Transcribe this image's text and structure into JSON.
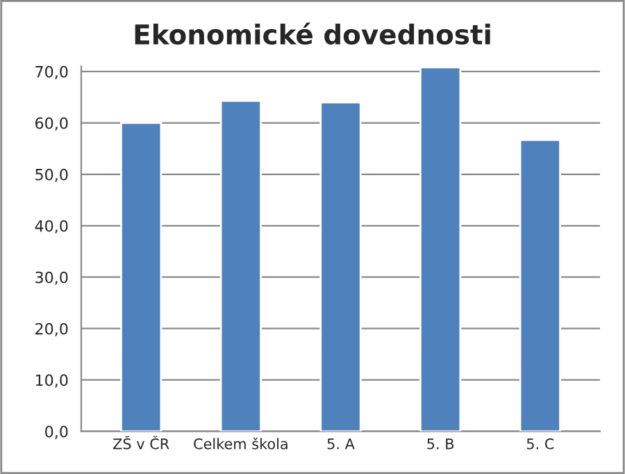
{
  "chart_data": {
    "type": "bar",
    "title": "Ekonomické dovednosti",
    "categories": [
      "ZŠ v ČR",
      "Celkem škola",
      "5. A",
      "5. B",
      "5. C"
    ],
    "values": [
      60.0,
      64.3,
      64.0,
      70.8,
      56.7
    ],
    "color": "#4f81bd",
    "ylim": [
      0,
      71
    ],
    "yticks": [
      {
        "value": 0,
        "label": "0,0"
      },
      {
        "value": 10,
        "label": "10,0"
      },
      {
        "value": 20,
        "label": "20,0"
      },
      {
        "value": 30,
        "label": "30,0"
      },
      {
        "value": 40,
        "label": "40,0"
      },
      {
        "value": 50,
        "label": "50,0"
      },
      {
        "value": 60,
        "label": "60,0"
      },
      {
        "value": 70,
        "label": "70,0"
      }
    ],
    "grid": "y"
  }
}
